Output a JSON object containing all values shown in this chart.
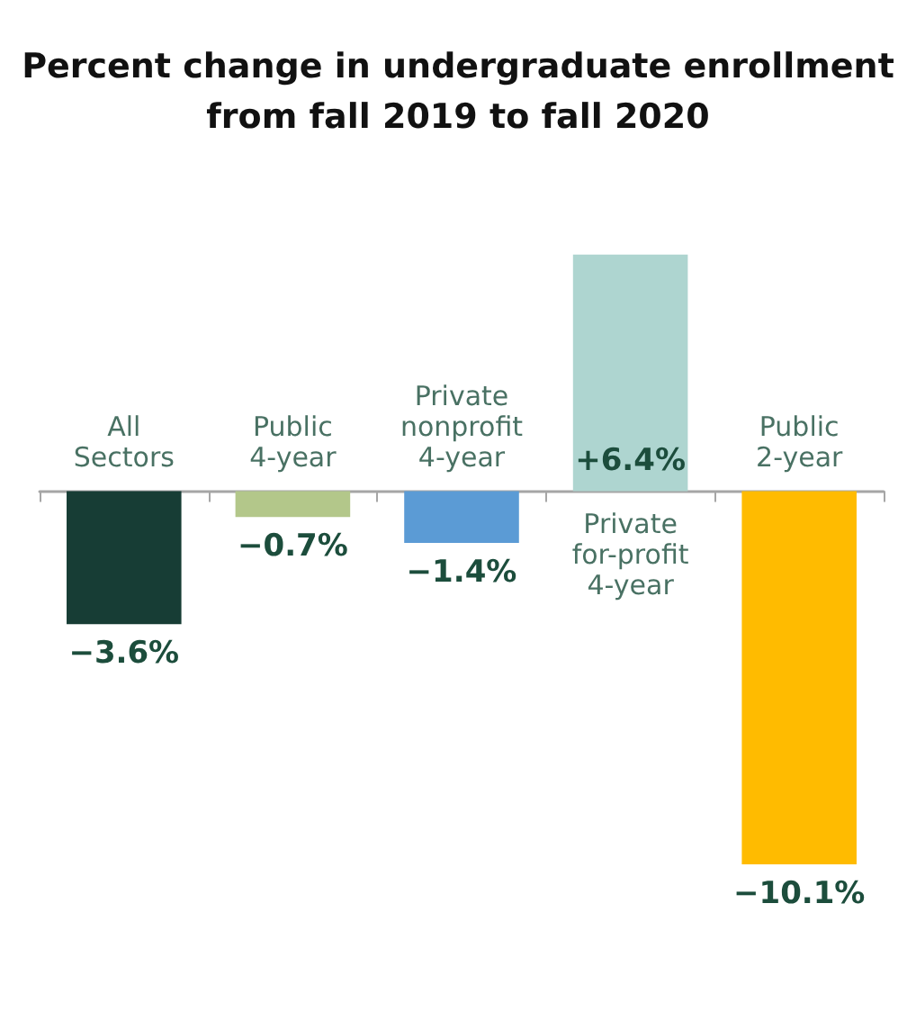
{
  "chart_data": {
    "type": "bar",
    "title": "Percent change in undergraduate enrollment\nfrom fall 2019 to fall 2020",
    "categories": [
      "All\nSectors",
      "Public\n4-year",
      "Private\nnonprofit\n4-year",
      "Private\nfor-profit\n4-year",
      "Public\n2-year"
    ],
    "values": [
      -3.6,
      -0.7,
      -1.4,
      6.4,
      -10.1
    ],
    "colors": [
      "#173d35",
      "#b3c78a",
      "#5b9bd5",
      "#aed5d0",
      "#ffbb00"
    ],
    "value_labels": [
      "−3.6%",
      "−0.7%",
      "−1.4%",
      "+6.4%",
      "−10.1%"
    ]
  }
}
